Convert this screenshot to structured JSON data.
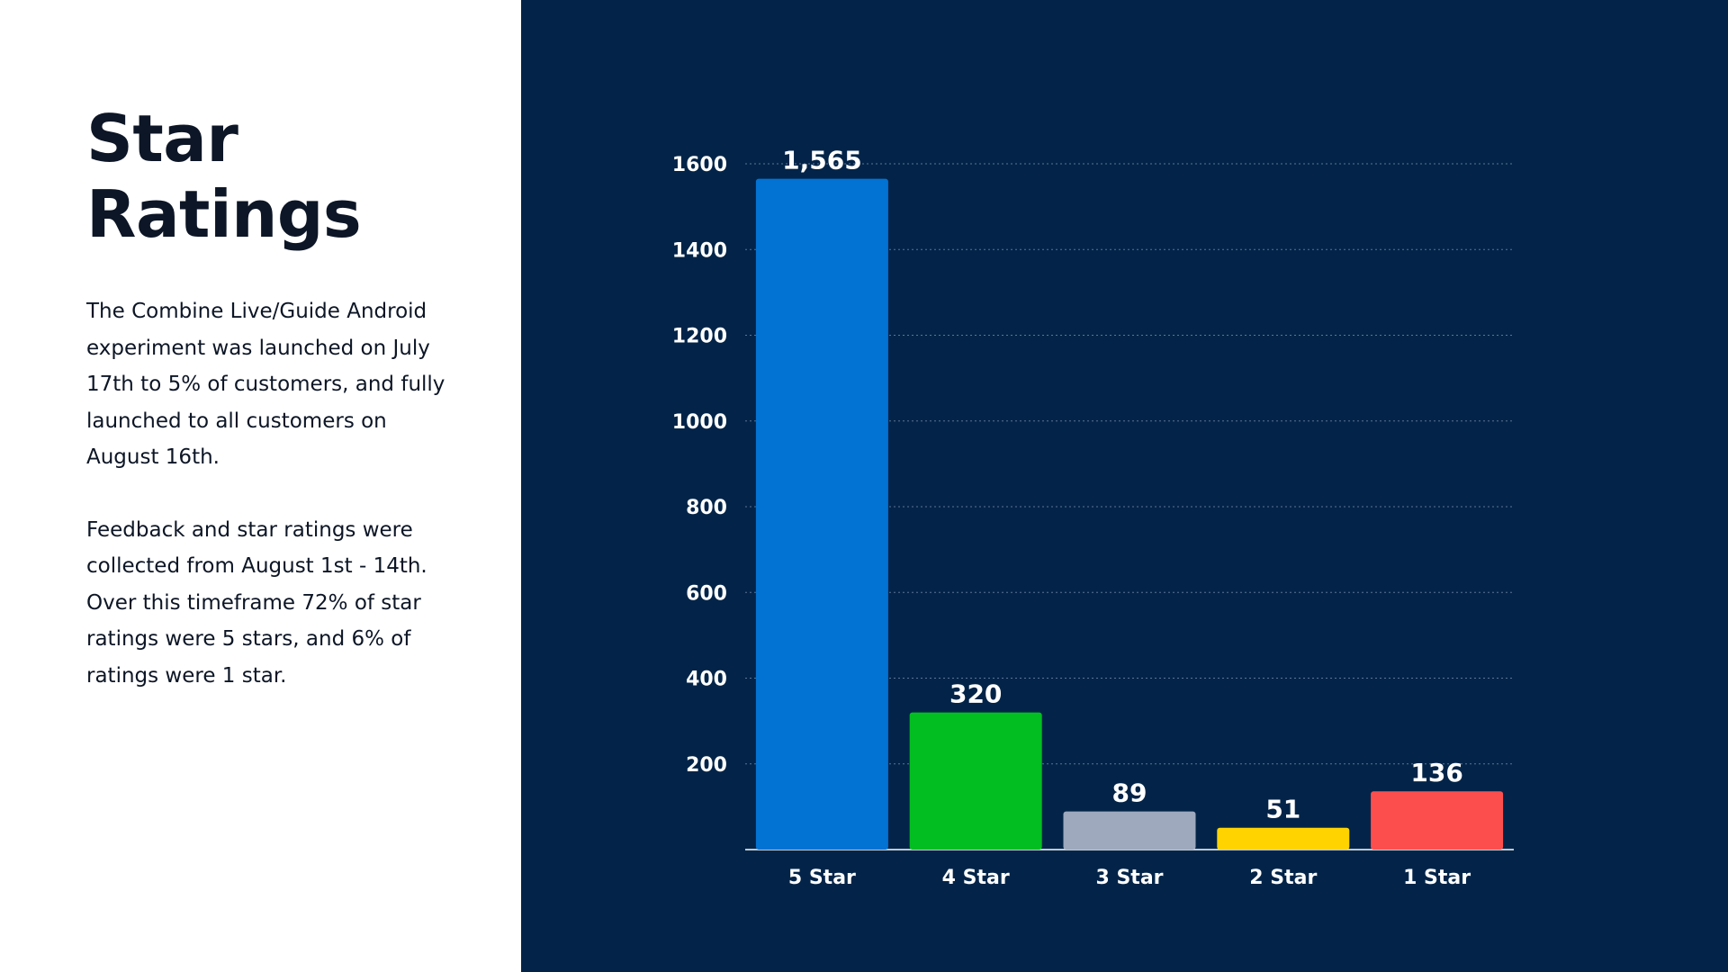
{
  "slide": {
    "title_line1": "Star",
    "title_line2": "Ratings",
    "paragraph1": "The Combine Live/Guide Android experiment was launched on July 17th to 5% of customers, and fully launched to all customers on August 16th.",
    "paragraph2": "Feedback and star ratings were collected from August 1st - 14th. Over this timeframe 72% of star ratings were 5 stars, and 6% of ratings were 1 star."
  },
  "chart_data": {
    "type": "bar",
    "categories": [
      "5 Star",
      "4 Star",
      "3 Star",
      "2 Star",
      "1 Star"
    ],
    "values": [
      1565,
      320,
      89,
      51,
      136
    ],
    "data_labels": [
      "1,565",
      "320",
      "89",
      "51",
      "136"
    ],
    "colors": [
      "#0272d3",
      "#03be20",
      "#9ea9bd",
      "#ffd300",
      "#fc4f4d"
    ],
    "title": "",
    "xlabel": "",
    "ylabel": "",
    "ylim": [
      0,
      1600
    ],
    "yticks": [
      200,
      400,
      600,
      800,
      1000,
      1200,
      1400,
      1600
    ],
    "grid": true,
    "legend": false
  }
}
